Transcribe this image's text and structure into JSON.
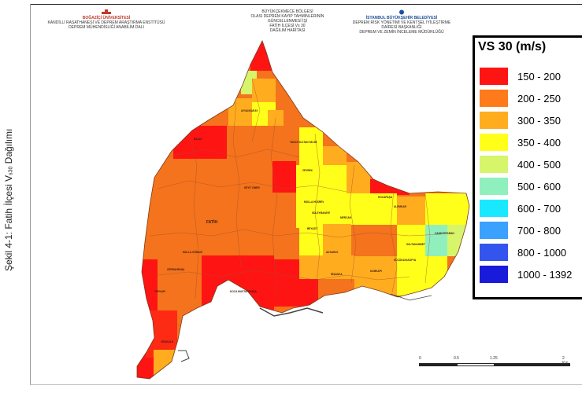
{
  "header": {
    "left": {
      "org": "BOĞAZİÇİ ÜNİVERSİTESİ",
      "line1": "KANDİLLİ RASATHANESİ VE DEPREM ARAŞTIRMA ENSTİTÜSÜ",
      "line2": "DEPREM MÜHENDİSLİĞİ ANABİLİM DALI"
    },
    "middle": {
      "line1": "BÜYÜKÇEKMECE BÖLGESİ",
      "line2": "OLASI DEPREM KAYIP TAHMİNLERİNİN",
      "line3": "GÜNCELLENMESİ İŞİ",
      "line4": "FATİH İLÇESİ Vs 30",
      "line5": "DAĞILIM HARİTASI"
    },
    "right": {
      "org": "İSTANBUL BÜYÜKŞEHİR BELEDİYESİ",
      "line1": "DEPREM RİSK YÖNETİMİ VE KENTSEL İYİLEŞTİRME DAİRESİ BAŞKANLIĞI",
      "line2": "DEPREM VE ZEMİN İNCELEME MÜDÜRLÜĞÜ"
    }
  },
  "side_caption": "Şekil 4-1: Fatih İlçesi V",
  "side_caption_sub": "s30",
  "side_caption_tail": " Dağılımı",
  "legend": {
    "title": "VS 30 (m/s)",
    "items": [
      {
        "label": "150 - 200",
        "color": "#ff1414"
      },
      {
        "label": "200 - 250",
        "color": "#ff7a1a"
      },
      {
        "label": "300 - 350",
        "color": "#ffad1f"
      },
      {
        "label": "350 - 400",
        "color": "#ffff1a"
      },
      {
        "label": "400 - 500",
        "color": "#d6f56a"
      },
      {
        "label": "500 - 600",
        "color": "#8ff0bd"
      },
      {
        "label": "600 - 700",
        "color": "#1ae8ff"
      },
      {
        "label": "700 - 800",
        "color": "#3aa1ff"
      },
      {
        "label": "800 - 1000",
        "color": "#3355ee"
      },
      {
        "label": "1000 - 1392",
        "color": "#1a1adb"
      }
    ]
  },
  "map": {
    "district_label": "FATİH",
    "neighborhood_labels": [
      "BALAT",
      "AYVANSARAY",
      "YAVUZ SULTAN SELİM",
      "ZEYREK",
      "HOCAPAŞA",
      "ALEMDAR",
      "MOLLA HÜSREV",
      "SÜLEYMANİYE",
      "BEYAZIT",
      "MERCAN",
      "KÜÇÜKAYASOFYA",
      "SULTANAHMET",
      "CANKURTARAN",
      "KUMKAPI",
      "AKSARAY",
      "NİŞANCA",
      "CERRAHPAŞA",
      "KOCA MUSTAFAPAŞA",
      "YEDİKULE",
      "SEYİT ÖMER",
      "MOLLA GÜRANİ",
      "TOPKAPI"
    ]
  },
  "scalebar": {
    "labels": [
      "0",
      "0.5",
      "1.25",
      "2 Km"
    ]
  }
}
